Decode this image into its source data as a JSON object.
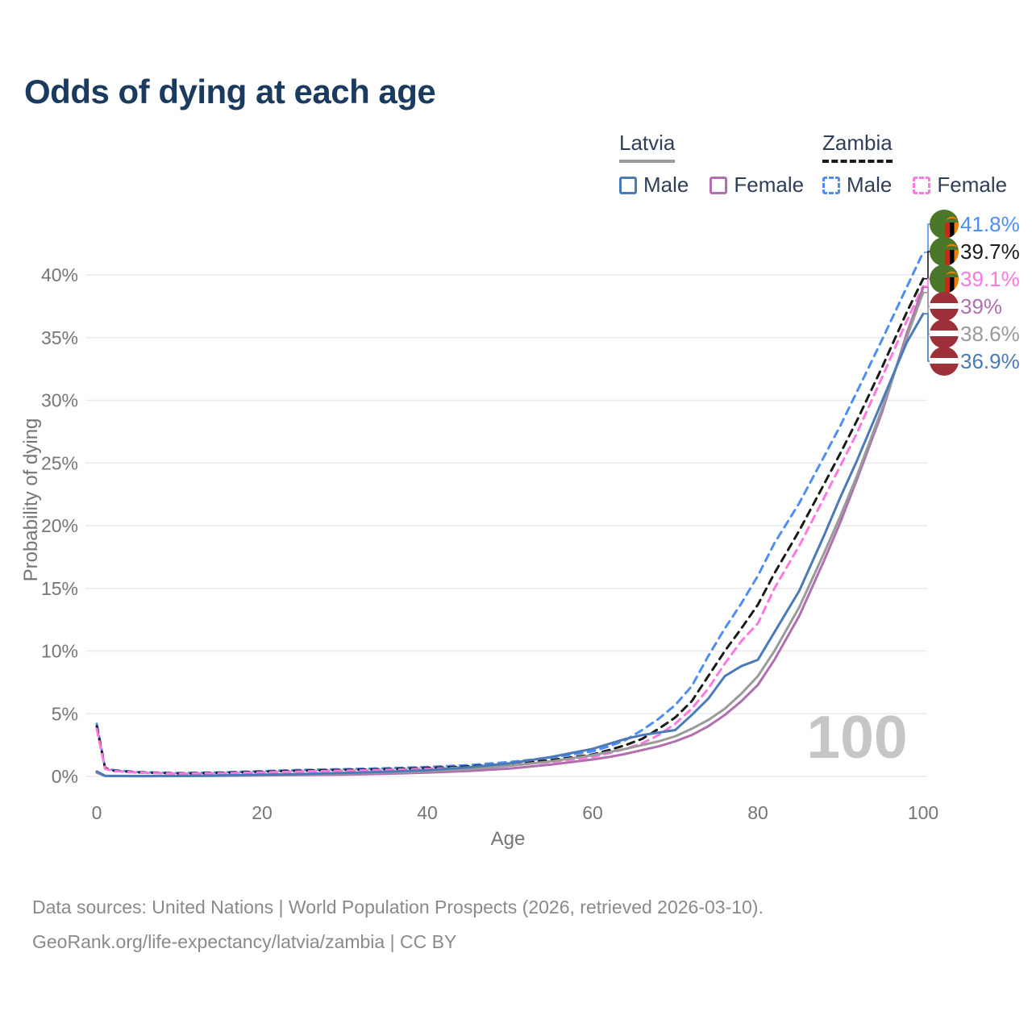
{
  "title": "Odds of dying at each age",
  "legend": {
    "groups": [
      {
        "label": "Latvia",
        "line_style": "solid",
        "underline_color": "#9a9a9a",
        "items": [
          {
            "label": "Male",
            "color": "#4a7ab8",
            "dashed": false
          },
          {
            "label": "Female",
            "color": "#b06fae",
            "dashed": false
          }
        ]
      },
      {
        "label": "Zambia",
        "line_style": "dashed",
        "underline_color": "#1a1a1a",
        "items": [
          {
            "label": "Male",
            "color": "#4d8df5",
            "dashed": true
          },
          {
            "label": "Female",
            "color": "#ff78e0",
            "dashed": true
          }
        ]
      }
    ]
  },
  "chart_data": {
    "type": "line",
    "title": "Odds of dying at each age",
    "xlabel": "Age",
    "ylabel": "Probability of dying",
    "xlim": [
      0,
      100
    ],
    "ylim": [
      0,
      42
    ],
    "grid": "horizontal",
    "legend_position": "top-right",
    "watermark": "100",
    "x_ticks": [
      {
        "label": "0",
        "value": 0
      },
      {
        "label": "20",
        "value": 20
      },
      {
        "label": "40",
        "value": 40
      },
      {
        "label": "60",
        "value": 60
      },
      {
        "label": "80",
        "value": 80
      },
      {
        "label": "100",
        "value": 100
      }
    ],
    "y_ticks": [
      {
        "label": "0%",
        "value": 0
      },
      {
        "label": "5%",
        "value": 5
      },
      {
        "label": "10%",
        "value": 10
      },
      {
        "label": "15%",
        "value": 15
      },
      {
        "label": "20%",
        "value": 20
      },
      {
        "label": "25%",
        "value": 25
      },
      {
        "label": "30%",
        "value": 30
      },
      {
        "label": "35%",
        "value": 35
      },
      {
        "label": "40%",
        "value": 40
      }
    ],
    "x": [
      0,
      1,
      2,
      5,
      10,
      15,
      20,
      25,
      30,
      35,
      40,
      45,
      50,
      55,
      60,
      62,
      64,
      66,
      68,
      70,
      72,
      74,
      76,
      78,
      80,
      82,
      85,
      88,
      90,
      92,
      95,
      98,
      100
    ],
    "series": [
      {
        "id": "zambia-male",
        "name": "Zambia Male",
        "country": "Zambia",
        "sex": "Male",
        "color": "#4d8df5",
        "dashed": true,
        "flag": "zambia",
        "end_label": "41.8%",
        "values": [
          4.2,
          0.7,
          0.5,
          0.35,
          0.27,
          0.32,
          0.42,
          0.52,
          0.58,
          0.65,
          0.75,
          0.9,
          1.15,
          1.5,
          2.0,
          2.4,
          2.9,
          3.7,
          4.6,
          5.7,
          7.2,
          9.6,
          11.8,
          13.8,
          16.0,
          18.6,
          21.8,
          25.5,
          28.0,
          30.7,
          34.8,
          39.0,
          41.8
        ]
      },
      {
        "id": "zambia-both",
        "name": "Zambia (both sexes)",
        "country": "Zambia",
        "sex": "Both",
        "color": "#1a1a1a",
        "dashed": true,
        "flag": "zambia",
        "end_label": "39.7%",
        "values": [
          4.0,
          0.65,
          0.46,
          0.32,
          0.24,
          0.28,
          0.37,
          0.46,
          0.52,
          0.58,
          0.67,
          0.8,
          1.0,
          1.3,
          1.75,
          2.1,
          2.5,
          3.0,
          3.8,
          4.7,
          6.0,
          8.0,
          10.0,
          11.8,
          13.7,
          16.2,
          19.6,
          23.3,
          25.8,
          28.4,
          32.6,
          37.0,
          39.7
        ]
      },
      {
        "id": "zambia-female",
        "name": "Zambia Female",
        "country": "Zambia",
        "sex": "Female",
        "color": "#ff78e0",
        "dashed": true,
        "flag": "zambia",
        "end_label": "39.1%",
        "values": [
          3.8,
          0.6,
          0.43,
          0.3,
          0.22,
          0.25,
          0.32,
          0.4,
          0.46,
          0.52,
          0.6,
          0.72,
          0.9,
          1.15,
          1.55,
          1.85,
          2.2,
          2.65,
          3.3,
          4.2,
          5.4,
          7.0,
          9.0,
          10.8,
          12.2,
          15.0,
          18.4,
          22.2,
          24.8,
          27.4,
          31.8,
          36.3,
          39.1
        ]
      },
      {
        "id": "latvia-female",
        "name": "Latvia Female",
        "country": "Latvia",
        "sex": "Female",
        "color": "#b06fae",
        "dashed": false,
        "flag": "latvia",
        "end_label": "39%",
        "values": [
          0.3,
          0.04,
          0.03,
          0.025,
          0.03,
          0.05,
          0.08,
          0.11,
          0.15,
          0.21,
          0.3,
          0.43,
          0.63,
          0.95,
          1.35,
          1.55,
          1.8,
          2.1,
          2.4,
          2.8,
          3.3,
          4.0,
          4.9,
          6.0,
          7.3,
          9.3,
          12.8,
          17.2,
          20.3,
          23.7,
          29.0,
          35.3,
          39.0
        ]
      },
      {
        "id": "latvia-both",
        "name": "Latvia (both sexes)",
        "country": "Latvia",
        "sex": "Both",
        "color": "#9a9a9a",
        "dashed": false,
        "flag": "latvia",
        "end_label": "38.6%",
        "values": [
          0.35,
          0.045,
          0.035,
          0.028,
          0.035,
          0.07,
          0.12,
          0.17,
          0.23,
          0.31,
          0.42,
          0.58,
          0.85,
          1.2,
          1.7,
          1.95,
          2.2,
          2.5,
          2.8,
          3.2,
          3.8,
          4.5,
          5.4,
          6.6,
          8.0,
          10.0,
          13.5,
          17.8,
          20.8,
          24.0,
          29.3,
          35.0,
          38.6
        ]
      },
      {
        "id": "latvia-male",
        "name": "Latvia Male",
        "country": "Latvia",
        "sex": "Male",
        "color": "#4a7ab8",
        "dashed": false,
        "flag": "latvia",
        "end_label": "36.9%",
        "values": [
          0.4,
          0.05,
          0.04,
          0.03,
          0.04,
          0.08,
          0.14,
          0.2,
          0.28,
          0.38,
          0.5,
          0.72,
          1.05,
          1.55,
          2.2,
          2.6,
          3.0,
          3.3,
          3.5,
          3.7,
          4.9,
          6.2,
          8.0,
          8.8,
          9.3,
          11.5,
          14.8,
          19.2,
          22.3,
          25.2,
          29.9,
          34.6,
          36.9
        ]
      }
    ]
  },
  "flag_colors": {
    "zambia_green": "#4a7729",
    "zambia_red": "#de2010",
    "zambia_black": "#000000",
    "zambia_orange": "#ef7d00",
    "latvia_red": "#9e3039",
    "latvia_white": "#ffffff"
  },
  "footer": {
    "line1": "Data sources: United Nations | World Population Prospects (2026, retrieved 2026-03-10).",
    "line2": "GeoRank.org/life-expectancy/latvia/zambia | CC BY"
  }
}
